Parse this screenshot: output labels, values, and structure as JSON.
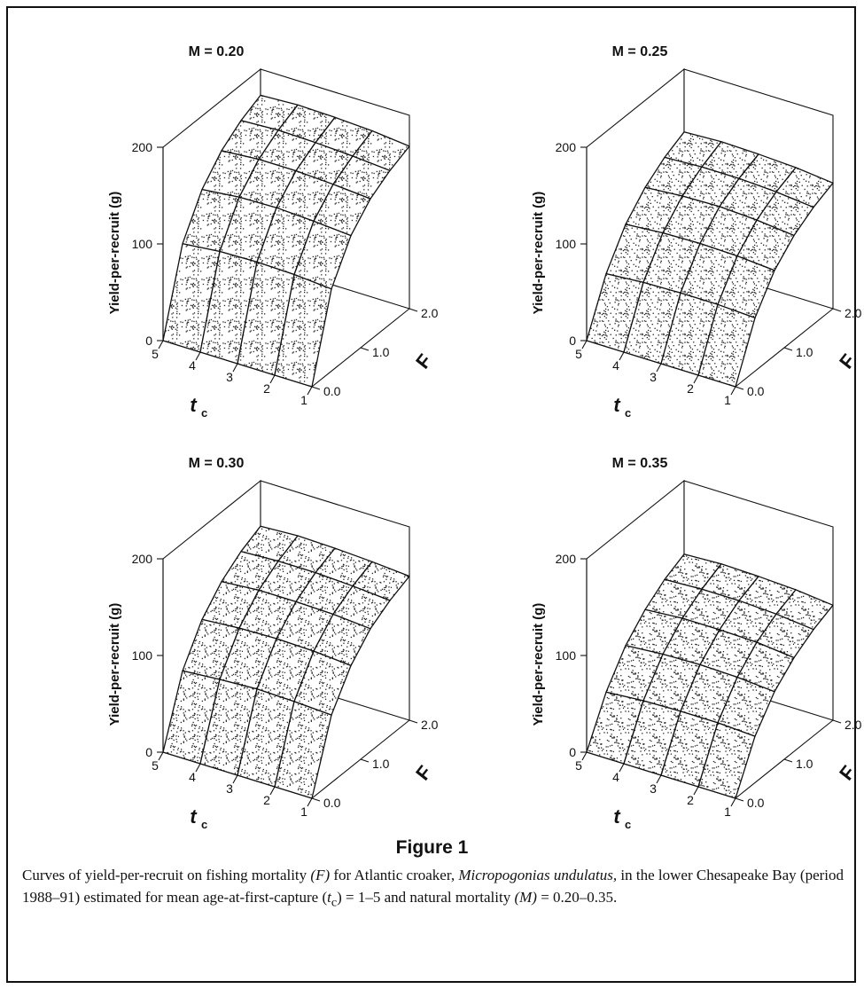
{
  "chart_data": [
    {
      "type": "surface",
      "title": "M = 0.20",
      "M": 0.2,
      "xlabel": "F",
      "ylabel": "Yield-per-recruit (g)",
      "zlabel": "t",
      "zlabel_sub": "c",
      "F_ticks": [
        "0.0",
        "1.0",
        "2.0"
      ],
      "tc_ticks": [
        "1",
        "2",
        "3",
        "4",
        "5"
      ],
      "y_ticks": [
        "0",
        "100",
        "200"
      ],
      "F": [
        0.0,
        0.4,
        0.8,
        1.2,
        1.6,
        2.0
      ],
      "tc": [
        1,
        2,
        3,
        4,
        5
      ],
      "ylim": [
        0,
        200
      ],
      "yield": [
        [
          0,
          85,
          124,
          146,
          159,
          168
        ],
        [
          0,
          88,
          127,
          149,
          162,
          172
        ],
        [
          0,
          89,
          129,
          151,
          164,
          174
        ],
        [
          0,
          88,
          128,
          151,
          165,
          175
        ],
        [
          0,
          84,
          124,
          148,
          163,
          173
        ]
      ]
    },
    {
      "type": "surface",
      "title": "M = 0.25",
      "M": 0.25,
      "xlabel": "F",
      "ylabel": "Yield-per-recruit (g)",
      "zlabel": "t",
      "zlabel_sub": "c",
      "F_ticks": [
        "0.0",
        "1.0",
        "2.0"
      ],
      "tc_ticks": [
        "1",
        "2",
        "3",
        "4",
        "5"
      ],
      "y_ticks": [
        "0",
        "100",
        "200"
      ],
      "F": [
        0.0,
        0.4,
        0.8,
        1.2,
        1.6,
        2.0
      ],
      "tc": [
        1,
        2,
        3,
        4,
        5
      ],
      "ylim": [
        0,
        200
      ],
      "yield": [
        [
          0,
          55,
          88,
          108,
          121,
          130
        ],
        [
          0,
          57,
          91,
          112,
          125,
          134
        ],
        [
          0,
          57,
          92,
          114,
          127,
          136
        ],
        [
          0,
          56,
          91,
          113,
          127,
          137
        ],
        [
          0,
          53,
          88,
          110,
          125,
          135
        ]
      ]
    },
    {
      "type": "surface",
      "title": "M = 0.30",
      "M": 0.3,
      "xlabel": "F",
      "ylabel": "Yield-per-recruit (g)",
      "zlabel": "t",
      "zlabel_sub": "c",
      "F_ticks": [
        "0.0",
        "1.0",
        "2.0"
      ],
      "tc_ticks": [
        "1",
        "2",
        "3",
        "4",
        "5"
      ],
      "y_ticks": [
        "0",
        "100",
        "200"
      ],
      "F": [
        0.0,
        0.4,
        0.8,
        1.2,
        1.6,
        2.0
      ],
      "tc": [
        1,
        2,
        3,
        4,
        5
      ],
      "ylim": [
        0,
        200
      ],
      "yield": [
        [
          0,
          70,
          105,
          127,
          140,
          149
        ],
        [
          0,
          72,
          108,
          130,
          143,
          152
        ],
        [
          0,
          73,
          109,
          131,
          145,
          154
        ],
        [
          0,
          71,
          108,
          131,
          145,
          155
        ],
        [
          0,
          68,
          105,
          128,
          143,
          153
        ]
      ]
    },
    {
      "type": "surface",
      "title": "M = 0.35",
      "M": 0.35,
      "xlabel": "F",
      "ylabel": "Yield-per-recruit (g)",
      "zlabel": "t",
      "zlabel_sub": "c",
      "F_ticks": [
        "0.0",
        "1.0",
        "2.0"
      ],
      "tc_ticks": [
        "1",
        "2",
        "3",
        "4",
        "5"
      ],
      "y_ticks": [
        "0",
        "100",
        "200"
      ],
      "F": [
        0.0,
        0.4,
        0.8,
        1.2,
        1.6,
        2.0
      ],
      "tc": [
        1,
        2,
        3,
        4,
        5
      ],
      "ylim": [
        0,
        200
      ],
      "yield": [
        [
          0,
          48,
          78,
          97,
          110,
          119
        ],
        [
          0,
          50,
          81,
          101,
          114,
          123
        ],
        [
          0,
          50,
          82,
          102,
          116,
          125
        ],
        [
          0,
          49,
          81,
          102,
          116,
          126
        ],
        [
          0,
          46,
          78,
          99,
          114,
          124
        ]
      ]
    }
  ],
  "figure": {
    "title": "Figure 1",
    "caption": {
      "t1": "Curves of yield-per-recruit on fishing mortality ",
      "i1": "(F)",
      "t2": " for Atlantic croaker, ",
      "i2": "Micropogonias undulatus,",
      "t3": " in the lower Chesapeake Bay (period 1988–91) estimated for mean age-at-first-capture (",
      "i3": "t",
      "sub": "c",
      "t4": ") = 1–5 and natural mortality ",
      "i4": "(M)",
      "t5": " = 0.20–0.35."
    }
  },
  "colors": {
    "ink": "#111111",
    "stipple": "#222222",
    "surface": "#ffffff"
  }
}
